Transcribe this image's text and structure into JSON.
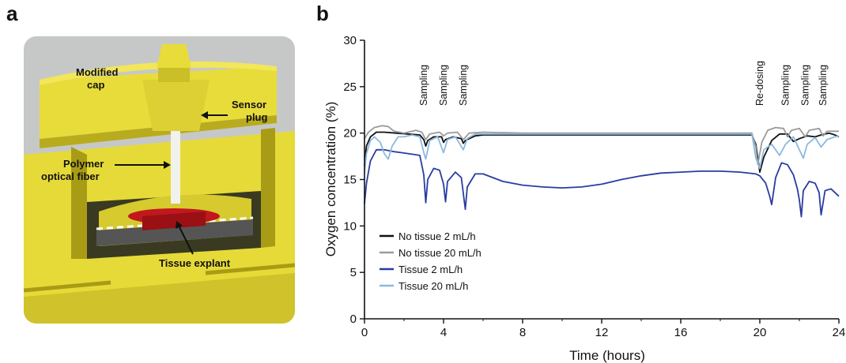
{
  "panels": {
    "a": "a",
    "b": "b"
  },
  "illustration": {
    "labels": {
      "modified_cap": [
        "Modified",
        "cap"
      ],
      "sensor_plug": [
        "Sensor",
        "plug"
      ],
      "polymer_fiber": [
        "Polymer",
        "optical fiber"
      ],
      "tissue_explant": "Tissue explant"
    },
    "colors": {
      "yellow": "#e8dc3a",
      "yellow_dark": "#b8ac1e",
      "tissue": "#c0181e",
      "membrane": "#555555",
      "background": "#c8cac9"
    }
  },
  "chart_data": {
    "type": "line",
    "title": "",
    "xlabel": "Time (hours)",
    "ylabel": "Oxygen concentration (%)",
    "xlim": [
      0,
      24
    ],
    "ylim": [
      0,
      30
    ],
    "xticks": [
      0,
      4,
      8,
      12,
      16,
      20,
      24
    ],
    "yticks": [
      0,
      5,
      10,
      15,
      20,
      25,
      30
    ],
    "grid": false,
    "legend_position": "bottom-left",
    "annotations": [
      {
        "x": 3.0,
        "text": "Sampling"
      },
      {
        "x": 4.0,
        "text": "Sampling"
      },
      {
        "x": 5.0,
        "text": "Sampling"
      },
      {
        "x": 20.0,
        "text": "Re-dosing"
      },
      {
        "x": 21.3,
        "text": "Sampling"
      },
      {
        "x": 22.3,
        "text": "Sampling"
      },
      {
        "x": 23.2,
        "text": "Sampling"
      }
    ],
    "series": [
      {
        "name": "No tissue 2 mL/h",
        "color": "#111111",
        "points": [
          [
            0,
            16.5
          ],
          [
            0.1,
            18.6
          ],
          [
            0.3,
            19.6
          ],
          [
            0.6,
            20.1
          ],
          [
            1.0,
            20.1
          ],
          [
            1.6,
            20.0
          ],
          [
            2.2,
            19.9
          ],
          [
            2.8,
            19.8
          ],
          [
            3.0,
            19.3
          ],
          [
            3.1,
            18.6
          ],
          [
            3.2,
            19.2
          ],
          [
            3.5,
            19.6
          ],
          [
            3.9,
            19.6
          ],
          [
            4.0,
            19.0
          ],
          [
            4.1,
            19.3
          ],
          [
            4.5,
            19.6
          ],
          [
            4.9,
            19.4
          ],
          [
            5.0,
            18.9
          ],
          [
            5.1,
            19.2
          ],
          [
            5.6,
            19.7
          ],
          [
            6.0,
            19.8
          ],
          [
            8,
            19.8
          ],
          [
            10,
            19.8
          ],
          [
            12,
            19.8
          ],
          [
            14,
            19.8
          ],
          [
            16,
            19.8
          ],
          [
            18,
            19.8
          ],
          [
            19.6,
            19.8
          ],
          [
            19.8,
            18.8
          ],
          [
            20.0,
            15.8
          ],
          [
            20.2,
            17.4
          ],
          [
            20.6,
            19.2
          ],
          [
            21.0,
            19.9
          ],
          [
            21.4,
            19.9
          ],
          [
            21.7,
            19.1
          ],
          [
            22.0,
            19.4
          ],
          [
            22.4,
            19.7
          ],
          [
            22.8,
            19.6
          ],
          [
            23.1,
            19.8
          ],
          [
            23.5,
            20.0
          ],
          [
            23.8,
            19.8
          ],
          [
            24.0,
            19.6
          ]
        ]
      },
      {
        "name": "No tissue 20 mL/h",
        "color": "#9a9a9a",
        "points": [
          [
            0,
            19.4
          ],
          [
            0.2,
            20.1
          ],
          [
            0.5,
            20.6
          ],
          [
            0.9,
            20.8
          ],
          [
            1.2,
            20.7
          ],
          [
            1.5,
            20.2
          ],
          [
            2.0,
            20.0
          ],
          [
            2.6,
            20.3
          ],
          [
            2.9,
            20.1
          ],
          [
            3.1,
            19.3
          ],
          [
            3.3,
            19.9
          ],
          [
            3.8,
            20.1
          ],
          [
            4.0,
            19.7
          ],
          [
            4.2,
            20.0
          ],
          [
            4.7,
            20.1
          ],
          [
            5.0,
            19.3
          ],
          [
            5.3,
            20.0
          ],
          [
            6.0,
            20.1
          ],
          [
            8,
            20.0
          ],
          [
            10,
            20.0
          ],
          [
            12,
            20.0
          ],
          [
            14,
            20.0
          ],
          [
            16,
            20.0
          ],
          [
            18,
            20.0
          ],
          [
            19.6,
            20.0
          ],
          [
            19.8,
            18.5
          ],
          [
            19.9,
            16.6
          ],
          [
            20.1,
            19.0
          ],
          [
            20.4,
            20.3
          ],
          [
            20.8,
            20.6
          ],
          [
            21.2,
            20.5
          ],
          [
            21.4,
            19.6
          ],
          [
            21.6,
            20.3
          ],
          [
            22.0,
            20.5
          ],
          [
            22.3,
            19.6
          ],
          [
            22.5,
            20.3
          ],
          [
            23.0,
            20.5
          ],
          [
            23.2,
            19.7
          ],
          [
            23.4,
            20.2
          ],
          [
            24.0,
            20.2
          ]
        ]
      },
      {
        "name": "Tissue 2 mL/h",
        "color": "#2a3ca0",
        "points": [
          [
            0,
            12.4
          ],
          [
            0.1,
            14.6
          ],
          [
            0.3,
            17.0
          ],
          [
            0.6,
            18.2
          ],
          [
            1.0,
            18.2
          ],
          [
            1.5,
            18.0
          ],
          [
            2.2,
            17.8
          ],
          [
            2.8,
            17.6
          ],
          [
            3.0,
            15.5
          ],
          [
            3.1,
            12.5
          ],
          [
            3.2,
            15.0
          ],
          [
            3.5,
            16.2
          ],
          [
            3.8,
            16.0
          ],
          [
            4.0,
            14.5
          ],
          [
            4.1,
            12.6
          ],
          [
            4.2,
            14.8
          ],
          [
            4.6,
            15.8
          ],
          [
            4.9,
            15.2
          ],
          [
            5.0,
            13.5
          ],
          [
            5.1,
            11.8
          ],
          [
            5.2,
            14.2
          ],
          [
            5.6,
            15.6
          ],
          [
            6.0,
            15.6
          ],
          [
            7.0,
            14.8
          ],
          [
            8.0,
            14.4
          ],
          [
            9.0,
            14.2
          ],
          [
            10.0,
            14.1
          ],
          [
            11.0,
            14.2
          ],
          [
            12.0,
            14.5
          ],
          [
            13.0,
            15.0
          ],
          [
            14.0,
            15.4
          ],
          [
            15.0,
            15.7
          ],
          [
            16.0,
            15.8
          ],
          [
            17.0,
            15.9
          ],
          [
            18.0,
            15.9
          ],
          [
            19.0,
            15.8
          ],
          [
            19.8,
            15.6
          ],
          [
            20.0,
            15.4
          ],
          [
            20.3,
            14.6
          ],
          [
            20.5,
            13.2
          ],
          [
            20.6,
            12.3
          ],
          [
            20.8,
            15.2
          ],
          [
            21.1,
            16.8
          ],
          [
            21.4,
            16.6
          ],
          [
            21.7,
            15.5
          ],
          [
            21.9,
            14.0
          ],
          [
            22.0,
            12.8
          ],
          [
            22.1,
            11.0
          ],
          [
            22.2,
            13.8
          ],
          [
            22.5,
            14.8
          ],
          [
            22.8,
            14.6
          ],
          [
            23.0,
            13.6
          ],
          [
            23.1,
            11.2
          ],
          [
            23.3,
            13.8
          ],
          [
            23.6,
            14.0
          ],
          [
            24.0,
            13.2
          ]
        ]
      },
      {
        "name": "Tissue 20 mL/h",
        "color": "#8ab9e0",
        "points": [
          [
            0,
            15.8
          ],
          [
            0.1,
            17.8
          ],
          [
            0.3,
            19.2
          ],
          [
            0.5,
            19.6
          ],
          [
            0.8,
            19.0
          ],
          [
            1.0,
            17.8
          ],
          [
            1.2,
            17.2
          ],
          [
            1.4,
            18.6
          ],
          [
            1.7,
            19.6
          ],
          [
            2.0,
            19.6
          ],
          [
            2.4,
            19.8
          ],
          [
            2.8,
            19.6
          ],
          [
            3.0,
            17.9
          ],
          [
            3.1,
            17.2
          ],
          [
            3.3,
            19.2
          ],
          [
            3.7,
            19.6
          ],
          [
            4.0,
            17.9
          ],
          [
            4.2,
            19.3
          ],
          [
            4.6,
            19.6
          ],
          [
            5.0,
            18.2
          ],
          [
            5.2,
            19.4
          ],
          [
            5.6,
            19.9
          ],
          [
            6.0,
            19.9
          ],
          [
            8,
            19.9
          ],
          [
            10,
            19.9
          ],
          [
            12,
            19.9
          ],
          [
            14,
            19.9
          ],
          [
            16,
            19.9
          ],
          [
            18,
            19.9
          ],
          [
            19.6,
            19.9
          ],
          [
            19.8,
            17.3
          ],
          [
            20.0,
            16.2
          ],
          [
            20.2,
            18.2
          ],
          [
            20.6,
            18.8
          ],
          [
            21.0,
            17.6
          ],
          [
            21.3,
            18.8
          ],
          [
            21.7,
            19.6
          ],
          [
            22.0,
            18.2
          ],
          [
            22.2,
            17.3
          ],
          [
            22.4,
            18.8
          ],
          [
            22.8,
            19.5
          ],
          [
            23.1,
            18.5
          ],
          [
            23.4,
            19.3
          ],
          [
            23.8,
            19.6
          ],
          [
            24.0,
            19.7
          ]
        ]
      }
    ]
  }
}
